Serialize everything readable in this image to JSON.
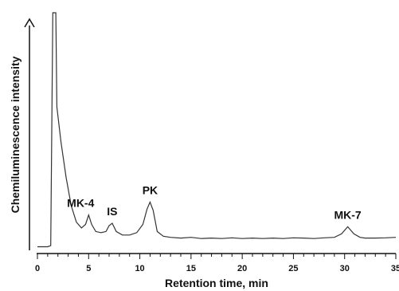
{
  "chart_data": {
    "type": "line",
    "title": "",
    "xlabel": "Retention time, min",
    "ylabel": "Chemiluminescence intensity",
    "xlim": [
      0,
      35
    ],
    "x_ticks": [
      "0",
      "5",
      "10",
      "15",
      "20",
      "25",
      "30",
      "35"
    ],
    "grid": false,
    "series": [
      {
        "x": [
          0,
          0.5,
          1.0,
          1.3,
          1.4,
          1.5,
          1.8,
          1.9,
          2.3,
          2.8,
          3.3,
          3.8,
          4.3,
          4.7,
          5.0,
          5.3,
          5.7,
          6.2,
          6.7,
          7.0,
          7.3,
          7.7,
          8.3,
          9.0,
          9.7,
          10.3,
          10.7,
          11.0,
          11.3,
          11.7,
          12.3,
          13.0,
          14.0,
          15.0,
          16.0,
          17.0,
          18.0,
          19.0,
          20.0,
          21.0,
          22.0,
          23.0,
          24.0,
          25.0,
          26.0,
          27.0,
          28.0,
          29.0,
          29.7,
          30.3,
          30.9,
          31.5,
          32.0,
          33.0,
          34.0,
          35.0
        ],
        "y": [
          0.5,
          0.5,
          0.5,
          1.0,
          50,
          100,
          100,
          60,
          45,
          30,
          18,
          11,
          8.5,
          10,
          14,
          10,
          7,
          6.5,
          7,
          9.5,
          10.5,
          7,
          5.5,
          5.5,
          6.5,
          10,
          16.5,
          19.5,
          16,
          7,
          5,
          4.5,
          4.2,
          4.5,
          4.0,
          4.2,
          4.0,
          4.3,
          4.0,
          4.2,
          4.0,
          4.2,
          4.0,
          4.3,
          4.2,
          4.0,
          4.3,
          4.5,
          6,
          9,
          6,
          4.5,
          4.2,
          4.2,
          4.3,
          4.5
        ]
      }
    ],
    "annotations": [
      {
        "text": "MK-4",
        "x": 5.0
      },
      {
        "text": "IS",
        "x": 7.3
      },
      {
        "text": "PK",
        "x": 11.0
      },
      {
        "text": "MK-7",
        "x": 30.3
      }
    ]
  }
}
